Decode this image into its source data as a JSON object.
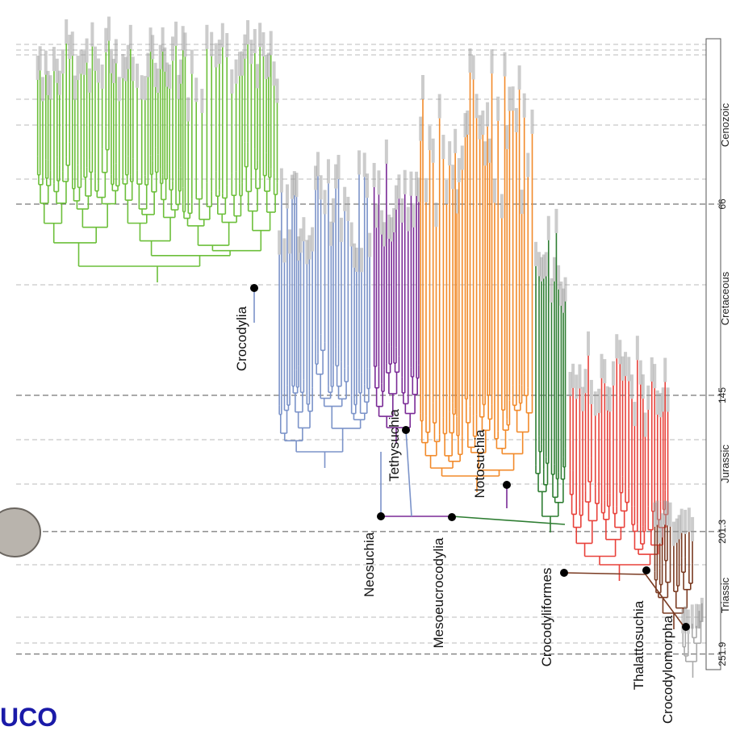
{
  "clades": [
    "Crocodylia",
    "Tethysuchia",
    "Neosuchia",
    "Mesoeucrocodylia",
    "Notosuchia",
    "Crocodyliformes",
    "Thalattosuchia",
    "Crocodylomorpha"
  ],
  "periods": [
    "Cenozoic",
    "Cretaceous",
    "Jurassic",
    "Triassic"
  ],
  "boundaries": [
    66,
    145,
    201.3,
    251.9
  ],
  "footer": "UCO"
}
